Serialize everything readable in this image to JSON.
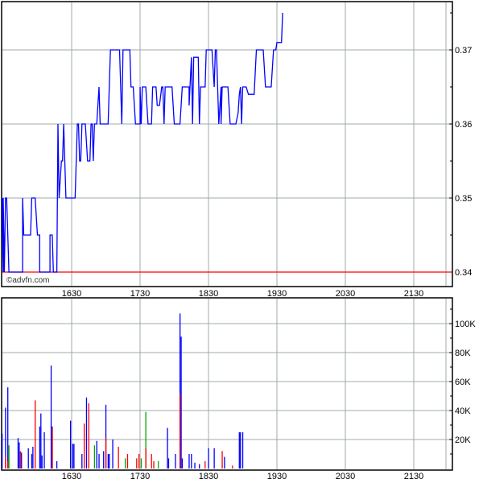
{
  "watermark": "©advfn.com",
  "colors": {
    "price_line": "#0000ff",
    "reference_line": "#ff0000",
    "grid": "#a0a8a8",
    "vol_up": "#0000ff",
    "vol_down": "#ff0000",
    "vol_neutral": "#00aa00"
  },
  "chart_data": [
    {
      "type": "line",
      "panel": "price",
      "x_tick_labels": [
        "1630",
        "1730",
        "1830",
        "1930",
        "2030",
        "2130"
      ],
      "y_tick_labels": [
        "0.37",
        "0.36",
        "0.35",
        "0.34"
      ],
      "ylim": [
        0.34,
        0.378
      ],
      "xlim": [
        1529,
        2205
      ],
      "grid": true,
      "reference_line": 0.34,
      "points": [
        [
          1529,
          0.35
        ],
        [
          1530,
          0.34
        ],
        [
          1530,
          0.35
        ],
        [
          1531,
          0.34
        ],
        [
          1532,
          0.35
        ],
        [
          1533,
          0.35
        ],
        [
          1535,
          0.34
        ],
        [
          1547,
          0.34
        ],
        [
          1547,
          0.35
        ],
        [
          1548,
          0.345
        ],
        [
          1554,
          0.345
        ],
        [
          1555,
          0.35
        ],
        [
          1558,
          0.35
        ],
        [
          1600,
          0.345
        ],
        [
          1602,
          0.345
        ],
        [
          1602,
          0.34
        ],
        [
          1611,
          0.34
        ],
        [
          1611,
          0.345
        ],
        [
          1613,
          0.345
        ],
        [
          1614,
          0.34
        ],
        [
          1617,
          0.34
        ],
        [
          1618,
          0.36
        ],
        [
          1619,
          0.35
        ],
        [
          1621,
          0.355
        ],
        [
          1622,
          0.355
        ],
        [
          1623,
          0.36
        ],
        [
          1625,
          0.35
        ],
        [
          1633,
          0.35
        ],
        [
          1635,
          0.36
        ],
        [
          1636,
          0.36
        ],
        [
          1637,
          0.355
        ],
        [
          1638,
          0.355
        ],
        [
          1639,
          0.36
        ],
        [
          1642,
          0.36
        ],
        [
          1644,
          0.355
        ],
        [
          1646,
          0.355
        ],
        [
          1647,
          0.36
        ],
        [
          1648,
          0.36
        ],
        [
          1649,
          0.355
        ],
        [
          1650,
          0.36
        ],
        [
          1652,
          0.36
        ],
        [
          1654,
          0.365
        ],
        [
          1655,
          0.36
        ],
        [
          1702,
          0.36
        ],
        [
          1704,
          0.37
        ],
        [
          1712,
          0.37
        ],
        [
          1714,
          0.36
        ],
        [
          1715,
          0.37
        ],
        [
          1721,
          0.37
        ],
        [
          1722,
          0.365
        ],
        [
          1724,
          0.365
        ],
        [
          1726,
          0.36
        ],
        [
          1730,
          0.36
        ],
        [
          1730,
          0.365
        ],
        [
          1731,
          0.36
        ],
        [
          1732,
          0.365
        ],
        [
          1735,
          0.365
        ],
        [
          1737,
          0.36
        ],
        [
          1740,
          0.36
        ],
        [
          1741,
          0.365
        ],
        [
          1744,
          0.365
        ],
        [
          1745,
          0.3625
        ],
        [
          1747,
          0.3625
        ],
        [
          1749,
          0.365
        ],
        [
          1750,
          0.365
        ],
        [
          1751,
          0.36
        ],
        [
          1752,
          0.365
        ],
        [
          1758,
          0.365
        ],
        [
          1800,
          0.36
        ],
        [
          1805,
          0.36
        ],
        [
          1807,
          0.365
        ],
        [
          1813,
          0.365
        ],
        [
          1813,
          0.3625
        ],
        [
          1815,
          0.369
        ],
        [
          1816,
          0.36
        ],
        [
          1817,
          0.369
        ],
        [
          1821,
          0.369
        ],
        [
          1822,
          0.36
        ],
        [
          1823,
          0.365
        ],
        [
          1827,
          0.365
        ],
        [
          1828,
          0.37
        ],
        [
          1833,
          0.37
        ],
        [
          1835,
          0.365
        ],
        [
          1836,
          0.37
        ],
        [
          1837,
          0.37
        ],
        [
          1839,
          0.36
        ],
        [
          1841,
          0.365
        ],
        [
          1841,
          0.36
        ],
        [
          1842,
          0.365
        ],
        [
          1847,
          0.365
        ],
        [
          1849,
          0.36
        ],
        [
          1854,
          0.36
        ],
        [
          1856,
          0.3615
        ],
        [
          1857,
          0.364
        ],
        [
          1858,
          0.365
        ],
        [
          1859,
          0.36
        ],
        [
          1900,
          0.365
        ],
        [
          1903,
          0.365
        ],
        [
          1905,
          0.364
        ],
        [
          1910,
          0.364
        ],
        [
          1912,
          0.37
        ],
        [
          1918,
          0.37
        ],
        [
          1920,
          0.365
        ],
        [
          1925,
          0.365
        ],
        [
          1927,
          0.37
        ],
        [
          1929,
          0.37
        ],
        [
          1930,
          0.371
        ],
        [
          1934,
          0.371
        ],
        [
          1935,
          0.375
        ]
      ]
    },
    {
      "type": "bar",
      "panel": "volume",
      "x_tick_labels": [
        "1630",
        "1730",
        "1830",
        "1930",
        "2030",
        "2130"
      ],
      "y_tick_labels": [
        "100K",
        "80K",
        "60K",
        "40K",
        "20K"
      ],
      "ylim": [
        0,
        115000
      ],
      "grid": true,
      "bars": [
        {
          "t": 1529,
          "v": 24000,
          "c": "blue"
        },
        {
          "t": 1532,
          "v": 42000,
          "c": "blue"
        },
        {
          "t": 1532,
          "v": 9000,
          "c": "red"
        },
        {
          "t": 1534,
          "v": 56000,
          "c": "blue"
        },
        {
          "t": 1534,
          "v": 5000,
          "c": "red"
        },
        {
          "t": 1535,
          "v": 16000,
          "c": "green"
        },
        {
          "t": 1543,
          "v": 21000,
          "c": "blue"
        },
        {
          "t": 1544,
          "v": 18000,
          "c": "blue"
        },
        {
          "t": 1545,
          "v": 12000,
          "c": "red"
        },
        {
          "t": 1546,
          "v": 11000,
          "c": "blue"
        },
        {
          "t": 1552,
          "v": 14000,
          "c": "blue"
        },
        {
          "t": 1555,
          "v": 10000,
          "c": "blue"
        },
        {
          "t": 1556,
          "v": 15000,
          "c": "blue"
        },
        {
          "t": 1558,
          "v": 47000,
          "c": "red"
        },
        {
          "t": 1602,
          "v": 29000,
          "c": "blue"
        },
        {
          "t": 1603,
          "v": 38000,
          "c": "blue"
        },
        {
          "t": 1604,
          "v": 9000,
          "c": "blue"
        },
        {
          "t": 1606,
          "v": 25000,
          "c": "blue"
        },
        {
          "t": 1612,
          "v": 71000,
          "c": "blue"
        },
        {
          "t": 1613,
          "v": 29000,
          "c": "blue"
        },
        {
          "t": 1613,
          "v": 28000,
          "c": "red"
        },
        {
          "t": 1617,
          "v": 5000,
          "c": "blue"
        },
        {
          "t": 1629,
          "v": 33000,
          "c": "blue"
        },
        {
          "t": 1631,
          "v": 17000,
          "c": "blue"
        },
        {
          "t": 1632,
          "v": 17000,
          "c": "blue"
        },
        {
          "t": 1639,
          "v": 10000,
          "c": "blue"
        },
        {
          "t": 1641,
          "v": 31000,
          "c": "red"
        },
        {
          "t": 1643,
          "v": 49000,
          "c": "blue"
        },
        {
          "t": 1645,
          "v": 45000,
          "c": "red"
        },
        {
          "t": 1650,
          "v": 16000,
          "c": "green"
        },
        {
          "t": 1652,
          "v": 19000,
          "c": "blue"
        },
        {
          "t": 1654,
          "v": 10000,
          "c": "blue"
        },
        {
          "t": 1658,
          "v": 12000,
          "c": "blue"
        },
        {
          "t": 1700,
          "v": 44000,
          "c": "blue"
        },
        {
          "t": 1700,
          "v": 21000,
          "c": "red"
        },
        {
          "t": 1702,
          "v": 10000,
          "c": "blue"
        },
        {
          "t": 1703,
          "v": 10000,
          "c": "blue"
        },
        {
          "t": 1706,
          "v": 20000,
          "c": "blue"
        },
        {
          "t": 1711,
          "v": 15000,
          "c": "red"
        },
        {
          "t": 1717,
          "v": 7000,
          "c": "green"
        },
        {
          "t": 1719,
          "v": 10000,
          "c": "red"
        },
        {
          "t": 1727,
          "v": 7000,
          "c": "red"
        },
        {
          "t": 1729,
          "v": 10000,
          "c": "red"
        },
        {
          "t": 1731,
          "v": 7000,
          "c": "green"
        },
        {
          "t": 1735,
          "v": 39000,
          "c": "green"
        },
        {
          "t": 1735,
          "v": 14000,
          "c": "red"
        },
        {
          "t": 1740,
          "v": 10000,
          "c": "red"
        },
        {
          "t": 1742,
          "v": 5000,
          "c": "red"
        },
        {
          "t": 1746,
          "v": 5000,
          "c": "green"
        },
        {
          "t": 1754,
          "v": 28000,
          "c": "blue"
        },
        {
          "t": 1755,
          "v": 7000,
          "c": "blue"
        },
        {
          "t": 1801,
          "v": 10000,
          "c": "blue"
        },
        {
          "t": 1805,
          "v": 107000,
          "c": "blue"
        },
        {
          "t": 1805,
          "v": 52000,
          "c": "red"
        },
        {
          "t": 1806,
          "v": 91000,
          "c": "blue"
        },
        {
          "t": 1807,
          "v": 7000,
          "c": "blue"
        },
        {
          "t": 1813,
          "v": 10000,
          "c": "blue"
        },
        {
          "t": 1815,
          "v": 10000,
          "c": "blue"
        },
        {
          "t": 1818,
          "v": 4000,
          "c": "blue"
        },
        {
          "t": 1822,
          "v": 3000,
          "c": "blue"
        },
        {
          "t": 1827,
          "v": 5000,
          "c": "red"
        },
        {
          "t": 1830,
          "v": 14000,
          "c": "blue"
        },
        {
          "t": 1835,
          "v": 14000,
          "c": "blue"
        },
        {
          "t": 1842,
          "v": 12000,
          "c": "red"
        },
        {
          "t": 1844,
          "v": 8000,
          "c": "blue"
        },
        {
          "t": 1851,
          "v": 2000,
          "c": "red"
        },
        {
          "t": 1857,
          "v": 25000,
          "c": "blue"
        },
        {
          "t": 1858,
          "v": 25000,
          "c": "blue"
        },
        {
          "t": 1900,
          "v": 25000,
          "c": "blue"
        }
      ]
    }
  ]
}
